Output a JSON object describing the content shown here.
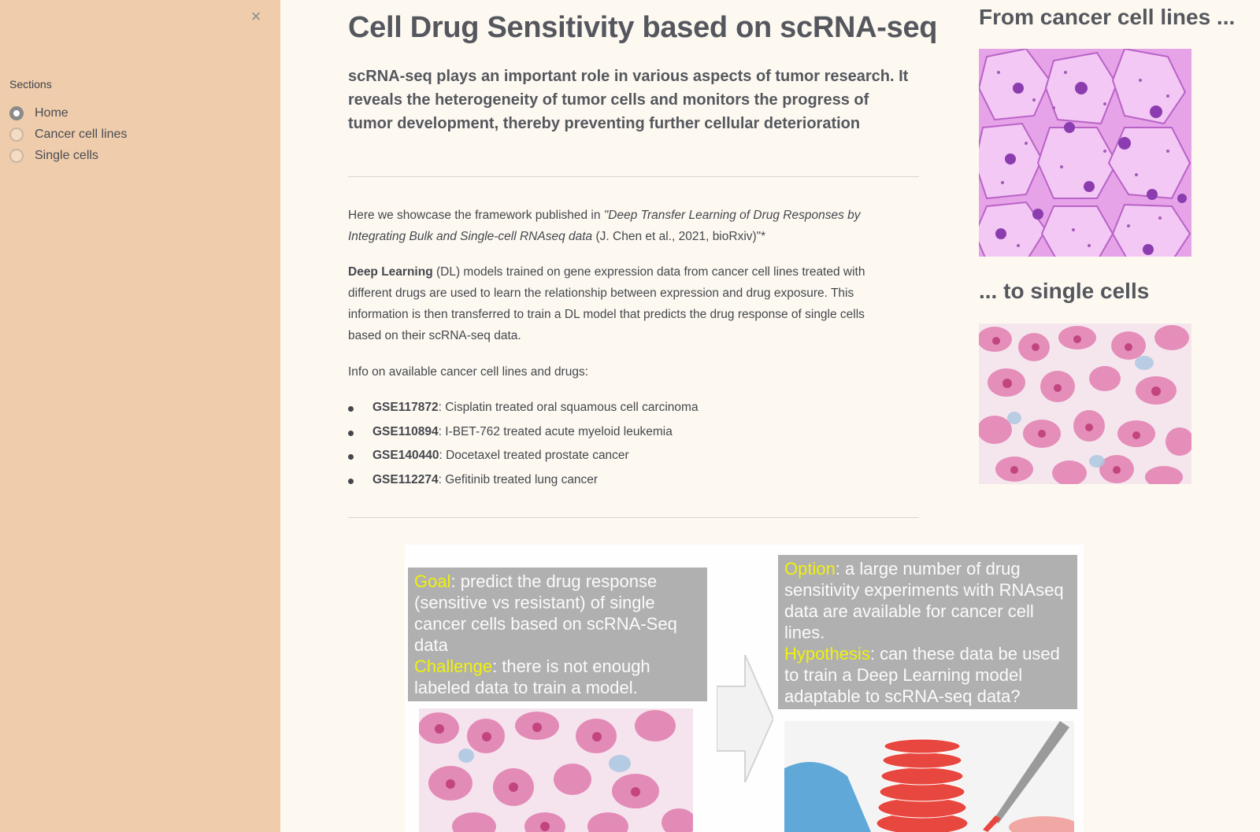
{
  "sidebar": {
    "close_icon": "×",
    "sections_label": "Sections",
    "options": [
      {
        "label": "Home",
        "checked": true
      },
      {
        "label": "Cancer cell lines",
        "checked": false
      },
      {
        "label": "Single cells",
        "checked": false
      }
    ]
  },
  "main": {
    "title": "Cell Drug Sensitivity based on scRNA-seq",
    "subtitle": "scRNA-seq plays an important role in various aspects of tumor research. It reveals the heterogeneity of tumor cells and monitors the progress of tumor development, thereby preventing further cellular deterioration",
    "intro": {
      "prefix": "Here we showcase the framework published in ",
      "paper_title": "\"Deep Transfer Learning of Drug Responses by Integrating Bulk and Single-cell RNAseq data",
      "citation": " (J. Chen et al., 2021, bioRxiv)\"*"
    },
    "dl_paragraph": {
      "bold": "Deep Learning",
      "text": " (DL) models trained on gene expression data from cancer cell lines treated with different drugs are used to learn the relationship between expression and drug exposure. This information is then transferred to train a DL model that predicts the drug response of single cells based on their scRNA-seq data."
    },
    "info_label": "Info on available cancer cell lines and drugs:",
    "datasets": [
      {
        "id": "GSE117872",
        "desc": ": Cisplatin treated oral squamous cell carcinoma"
      },
      {
        "id": "GSE110894",
        "desc": ": I-BET-762 treated acute myeloid leukemia"
      },
      {
        "id": "GSE140440",
        "desc": ": Docetaxel treated prostate cancer"
      },
      {
        "id": "GSE112274",
        "desc": ": Gefitinib treated lung cancer"
      }
    ]
  },
  "right": {
    "heading_top": "From cancer cell lines ...",
    "heading_bottom": "... to single cells"
  },
  "figure": {
    "goal_label": "Goal",
    "goal_text": ": predict the drug response (sensitive vs resistant) of single cancer cells based on scRNA-Seq data",
    "challenge_label": "Challenge",
    "challenge_text": ": there is not enough labeled data to train a model.",
    "option_label": "Option",
    "option_text": ": a large number of drug sensitivity experiments with RNAseq data are available for cancer cell lines.",
    "hypothesis_label": "Hypothesis",
    "hypothesis_text": ": can these data be used to train a Deep Learning model adaptable to scRNA-seq data?"
  },
  "colors": {
    "sidebar": "#efcdac",
    "background": "#fdf9f1",
    "figure_gray": "#b0b0b0",
    "figure_highlight": "#f1f10c"
  }
}
